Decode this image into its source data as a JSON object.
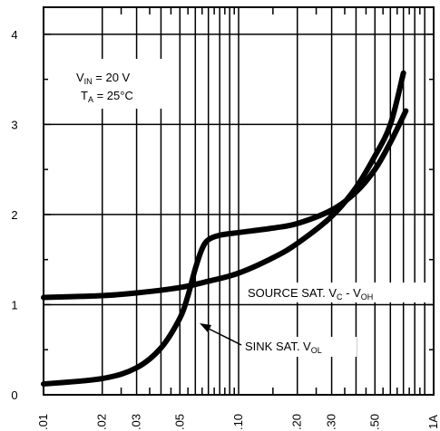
{
  "chart_data": {
    "type": "line",
    "title": "",
    "xlabel": "",
    "ylabel": "",
    "x_scale": "log",
    "xlim": [
      0.01,
      1
    ],
    "ylim": [
      0,
      4.3
    ],
    "y_ticks": [
      0,
      1,
      2,
      3,
      4
    ],
    "y_tick_labels": [
      "0",
      "1",
      "2",
      "3",
      "4"
    ],
    "x_ticks": [
      0.01,
      0.02,
      0.03,
      0.05,
      0.1,
      0.2,
      0.3,
      0.5,
      1
    ],
    "x_tick_labels": [
      ".01",
      ".02",
      ".03",
      ".05",
      ".10",
      ".20",
      ".30",
      ".50",
      "1A"
    ],
    "grid": true,
    "annotations": {
      "conditions_line1_main": "V",
      "conditions_line1_sub": "IN",
      "conditions_line1_rest": " = 20 V",
      "conditions_line2_main": "T",
      "conditions_line2_sub": "A",
      "conditions_line2_rest": " = 25°C"
    },
    "series": [
      {
        "name": "SOURCE SAT. V - V",
        "label_parts": [
          "SOURCE SAT. V",
          "C",
          " - V",
          "OH"
        ],
        "color": "#000000",
        "x": [
          0.01,
          0.02,
          0.03,
          0.05,
          0.07,
          0.1,
          0.15,
          0.2,
          0.3,
          0.4,
          0.5,
          0.6,
          0.7
        ],
        "y": [
          1.08,
          1.1,
          1.13,
          1.19,
          1.26,
          1.35,
          1.52,
          1.68,
          1.98,
          2.3,
          2.65,
          3.0,
          3.57
        ]
      },
      {
        "name": "SINK SAT. V",
        "label_parts": [
          "SINK SAT. V",
          "OL"
        ],
        "color": "#000000",
        "x": [
          0.01,
          0.02,
          0.03,
          0.04,
          0.05,
          0.055,
          0.06,
          0.065,
          0.07,
          0.08,
          0.1,
          0.15,
          0.2,
          0.3,
          0.4,
          0.5,
          0.6,
          0.72
        ],
        "y": [
          0.12,
          0.18,
          0.3,
          0.52,
          0.85,
          1.1,
          1.4,
          1.62,
          1.72,
          1.77,
          1.8,
          1.85,
          1.9,
          2.05,
          2.25,
          2.5,
          2.8,
          3.15
        ]
      }
    ]
  }
}
